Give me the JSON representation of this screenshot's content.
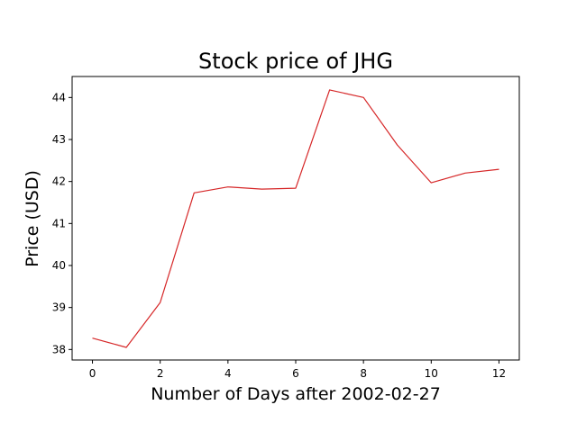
{
  "chart_data": {
    "type": "line",
    "title": "Stock price of JHG",
    "xlabel": "Number of Days after 2002-02-27",
    "ylabel": "Price (USD)",
    "xlim": [
      -0.6,
      12.6
    ],
    "ylim": [
      37.75,
      44.5
    ],
    "xticks": [
      0,
      2,
      4,
      6,
      8,
      10,
      12
    ],
    "yticks": [
      38,
      39,
      40,
      41,
      42,
      43,
      44
    ],
    "grid": false,
    "legend": "none",
    "series": [
      {
        "color": "#d62728",
        "x": [
          0,
          1,
          2,
          3,
          4,
          5,
          6,
          7,
          8,
          9,
          10,
          11,
          12
        ],
        "y": [
          38.27,
          38.05,
          39.12,
          41.73,
          41.87,
          41.82,
          41.84,
          44.18,
          44.0,
          42.87,
          41.97,
          42.2,
          42.29
        ]
      }
    ]
  }
}
